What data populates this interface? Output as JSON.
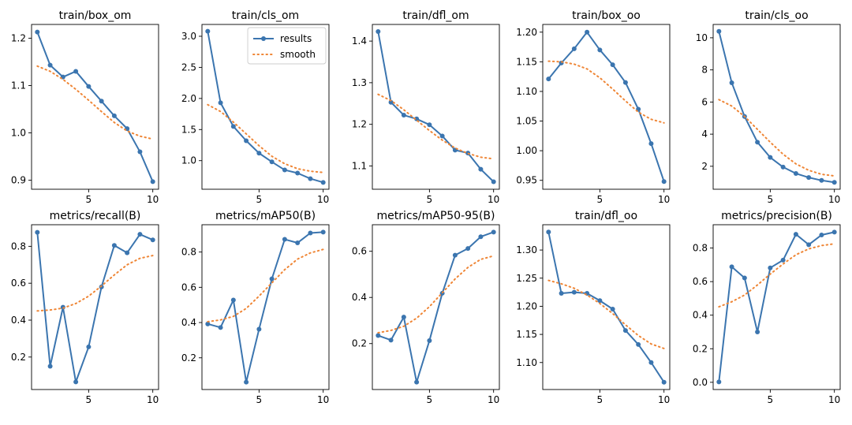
{
  "legend": {
    "results_label": "results",
    "smooth_label": "smooth"
  },
  "colors": {
    "results": "#3b75af",
    "smooth": "#ef8636"
  },
  "chart_data": [
    {
      "type": "line",
      "title": "train/box_om",
      "x": [
        1,
        2,
        3,
        4,
        5,
        6,
        7,
        8,
        9,
        10
      ],
      "series": [
        {
          "name": "results",
          "values": [
            1.213,
            1.143,
            1.118,
            1.13,
            1.098,
            1.067,
            1.036,
            1.009,
            0.96,
            0.897
          ]
        },
        {
          "name": "smooth",
          "values": [
            1.141,
            1.13,
            1.113,
            1.092,
            1.069,
            1.045,
            1.022,
            1.004,
            0.993,
            0.987
          ]
        }
      ],
      "xticks": [
        5,
        10
      ],
      "yticks": [
        0.9,
        1.0,
        1.1,
        1.2
      ],
      "ytick_labels": [
        "0.9",
        "1.0",
        "1.1",
        "1.2"
      ],
      "xlim": [
        0.55,
        10.45
      ],
      "ylim": [
        0.881,
        1.229
      ],
      "legend": false
    },
    {
      "type": "line",
      "title": "train/cls_om",
      "x": [
        1,
        2,
        3,
        4,
        5,
        6,
        7,
        8,
        9,
        10
      ],
      "series": [
        {
          "name": "results",
          "values": [
            3.08,
            1.93,
            1.55,
            1.32,
            1.12,
            0.98,
            0.85,
            0.8,
            0.71,
            0.65
          ]
        },
        {
          "name": "smooth",
          "values": [
            1.9,
            1.79,
            1.62,
            1.43,
            1.24,
            1.07,
            0.95,
            0.87,
            0.83,
            0.81
          ]
        }
      ],
      "xticks": [
        5,
        10
      ],
      "yticks": [
        1.0,
        1.5,
        2.0,
        2.5,
        3.0
      ],
      "ytick_labels": [
        "1.0",
        "1.5",
        "2.0",
        "2.5",
        "3.0"
      ],
      "xlim": [
        0.55,
        10.45
      ],
      "ylim": [
        0.54,
        3.19
      ],
      "legend": true
    },
    {
      "type": "line",
      "title": "train/dfl_om",
      "x": [
        1,
        2,
        3,
        4,
        5,
        6,
        7,
        8,
        9,
        10
      ],
      "series": [
        {
          "name": "results",
          "values": [
            1.423,
            1.253,
            1.222,
            1.213,
            1.199,
            1.172,
            1.138,
            1.131,
            1.092,
            1.062
          ]
        },
        {
          "name": "smooth",
          "values": [
            1.272,
            1.257,
            1.235,
            1.21,
            1.185,
            1.162,
            1.143,
            1.13,
            1.121,
            1.117
          ]
        }
      ],
      "xticks": [
        5,
        10
      ],
      "yticks": [
        1.1,
        1.2,
        1.3,
        1.4
      ],
      "ytick_labels": [
        "1.1",
        "1.2",
        "1.3",
        "1.4"
      ],
      "xlim": [
        0.55,
        10.45
      ],
      "ylim": [
        1.044,
        1.44
      ],
      "legend": false
    },
    {
      "type": "line",
      "title": "train/box_oo",
      "x": [
        1,
        2,
        3,
        4,
        5,
        6,
        7,
        8,
        9,
        10
      ],
      "series": [
        {
          "name": "results",
          "values": [
            1.121,
            1.148,
            1.172,
            1.2,
            1.17,
            1.145,
            1.115,
            1.07,
            1.012,
            0.948
          ]
        },
        {
          "name": "smooth",
          "values": [
            1.151,
            1.15,
            1.146,
            1.138,
            1.123,
            1.104,
            1.084,
            1.065,
            1.053,
            1.047
          ]
        }
      ],
      "xticks": [
        5,
        10
      ],
      "yticks": [
        0.95,
        1.0,
        1.05,
        1.1,
        1.15,
        1.2
      ],
      "ytick_labels": [
        "0.95",
        "1.00",
        "1.05",
        "1.10",
        "1.15",
        "1.20"
      ],
      "xlim": [
        0.55,
        10.45
      ],
      "ylim": [
        0.935,
        1.213
      ],
      "legend": false
    },
    {
      "type": "line",
      "title": "train/cls_oo",
      "x": [
        1,
        2,
        3,
        4,
        5,
        6,
        7,
        8,
        9,
        10
      ],
      "series": [
        {
          "name": "results",
          "values": [
            10.4,
            7.2,
            5.1,
            3.5,
            2.55,
            1.95,
            1.55,
            1.3,
            1.12,
            1.0
          ]
        },
        {
          "name": "smooth",
          "values": [
            6.15,
            5.75,
            5.1,
            4.3,
            3.5,
            2.75,
            2.15,
            1.75,
            1.5,
            1.4
          ]
        }
      ],
      "xticks": [
        5,
        10
      ],
      "yticks": [
        2,
        4,
        6,
        8,
        10
      ],
      "ytick_labels": [
        "2",
        "4",
        "6",
        "8",
        "10"
      ],
      "xlim": [
        0.55,
        10.45
      ],
      "ylim": [
        0.57,
        10.83
      ],
      "legend": false
    },
    {
      "type": "line",
      "title": "metrics/recall(B)",
      "x": [
        1,
        2,
        3,
        4,
        5,
        6,
        7,
        8,
        9,
        10
      ],
      "series": [
        {
          "name": "results",
          "values": [
            0.876,
            0.15,
            0.47,
            0.065,
            0.255,
            0.58,
            0.805,
            0.765,
            0.865,
            0.835
          ]
        },
        {
          "name": "smooth",
          "values": [
            0.45,
            0.455,
            0.465,
            0.49,
            0.53,
            0.585,
            0.645,
            0.7,
            0.735,
            0.75
          ]
        }
      ],
      "xticks": [
        5,
        10
      ],
      "yticks": [
        0.2,
        0.4,
        0.6,
        0.8
      ],
      "ytick_labels": [
        "0.2",
        "0.4",
        "0.6",
        "0.8"
      ],
      "xlim": [
        0.55,
        10.45
      ],
      "ylim": [
        0.024,
        0.917
      ],
      "legend": false
    },
    {
      "type": "line",
      "title": "metrics/mAP50(B)",
      "x": [
        1,
        2,
        3,
        4,
        5,
        6,
        7,
        8,
        9,
        10
      ],
      "series": [
        {
          "name": "results",
          "values": [
            0.392,
            0.372,
            0.528,
            0.062,
            0.362,
            0.648,
            0.872,
            0.852,
            0.908,
            0.913
          ]
        },
        {
          "name": "smooth",
          "values": [
            0.405,
            0.415,
            0.435,
            0.48,
            0.55,
            0.625,
            0.7,
            0.76,
            0.795,
            0.815
          ]
        }
      ],
      "xticks": [
        5,
        10
      ],
      "yticks": [
        0.2,
        0.4,
        0.6,
        0.8
      ],
      "ytick_labels": [
        "0.2",
        "0.4",
        "0.6",
        "0.8"
      ],
      "xlim": [
        0.55,
        10.45
      ],
      "ylim": [
        0.02,
        0.955
      ],
      "legend": false
    },
    {
      "type": "line",
      "title": "metrics/mAP50-95(B)",
      "x": [
        1,
        2,
        3,
        4,
        5,
        6,
        7,
        8,
        9,
        10
      ],
      "series": [
        {
          "name": "results",
          "values": [
            0.235,
            0.215,
            0.315,
            0.033,
            0.213,
            0.418,
            0.583,
            0.612,
            0.663,
            0.683
          ]
        },
        {
          "name": "smooth",
          "values": [
            0.247,
            0.257,
            0.275,
            0.31,
            0.36,
            0.42,
            0.48,
            0.53,
            0.565,
            0.58
          ]
        }
      ],
      "xticks": [
        5,
        10
      ],
      "yticks": [
        0.2,
        0.4,
        0.6
      ],
      "ytick_labels": [
        "0.2",
        "0.4",
        "0.6"
      ],
      "xlim": [
        0.55,
        10.45
      ],
      "ylim": [
        0.001,
        0.715
      ],
      "legend": false
    },
    {
      "type": "line",
      "title": "train/dfl_oo",
      "x": [
        1,
        2,
        3,
        4,
        5,
        6,
        7,
        8,
        9,
        10
      ],
      "series": [
        {
          "name": "results",
          "values": [
            1.332,
            1.223,
            1.225,
            1.223,
            1.21,
            1.195,
            1.157,
            1.132,
            1.1,
            1.065
          ]
        },
        {
          "name": "smooth",
          "values": [
            1.246,
            1.24,
            1.232,
            1.22,
            1.205,
            1.187,
            1.167,
            1.148,
            1.133,
            1.125
          ]
        }
      ],
      "xticks": [
        5,
        10
      ],
      "yticks": [
        1.1,
        1.15,
        1.2,
        1.25,
        1.3
      ],
      "ytick_labels": [
        "1.10",
        "1.15",
        "1.20",
        "1.25",
        "1.30"
      ],
      "xlim": [
        0.55,
        10.45
      ],
      "ylim": [
        1.052,
        1.345
      ],
      "legend": false
    },
    {
      "type": "line",
      "title": "metrics/precision(B)",
      "x": [
        1,
        2,
        3,
        4,
        5,
        6,
        7,
        8,
        9,
        10
      ],
      "series": [
        {
          "name": "results",
          "values": [
            0.002,
            0.688,
            0.622,
            0.3,
            0.682,
            0.728,
            0.882,
            0.82,
            0.878,
            0.895
          ]
        },
        {
          "name": "smooth",
          "values": [
            0.45,
            0.48,
            0.52,
            0.58,
            0.645,
            0.705,
            0.76,
            0.795,
            0.815,
            0.825
          ]
        }
      ],
      "xticks": [
        5,
        10
      ],
      "yticks": [
        0.0,
        0.2,
        0.4,
        0.6,
        0.8
      ],
      "ytick_labels": [
        "0.0",
        "0.2",
        "0.4",
        "0.6",
        "0.8"
      ],
      "xlim": [
        0.55,
        10.45
      ],
      "ylim": [
        -0.043,
        0.939
      ],
      "legend": false
    }
  ]
}
